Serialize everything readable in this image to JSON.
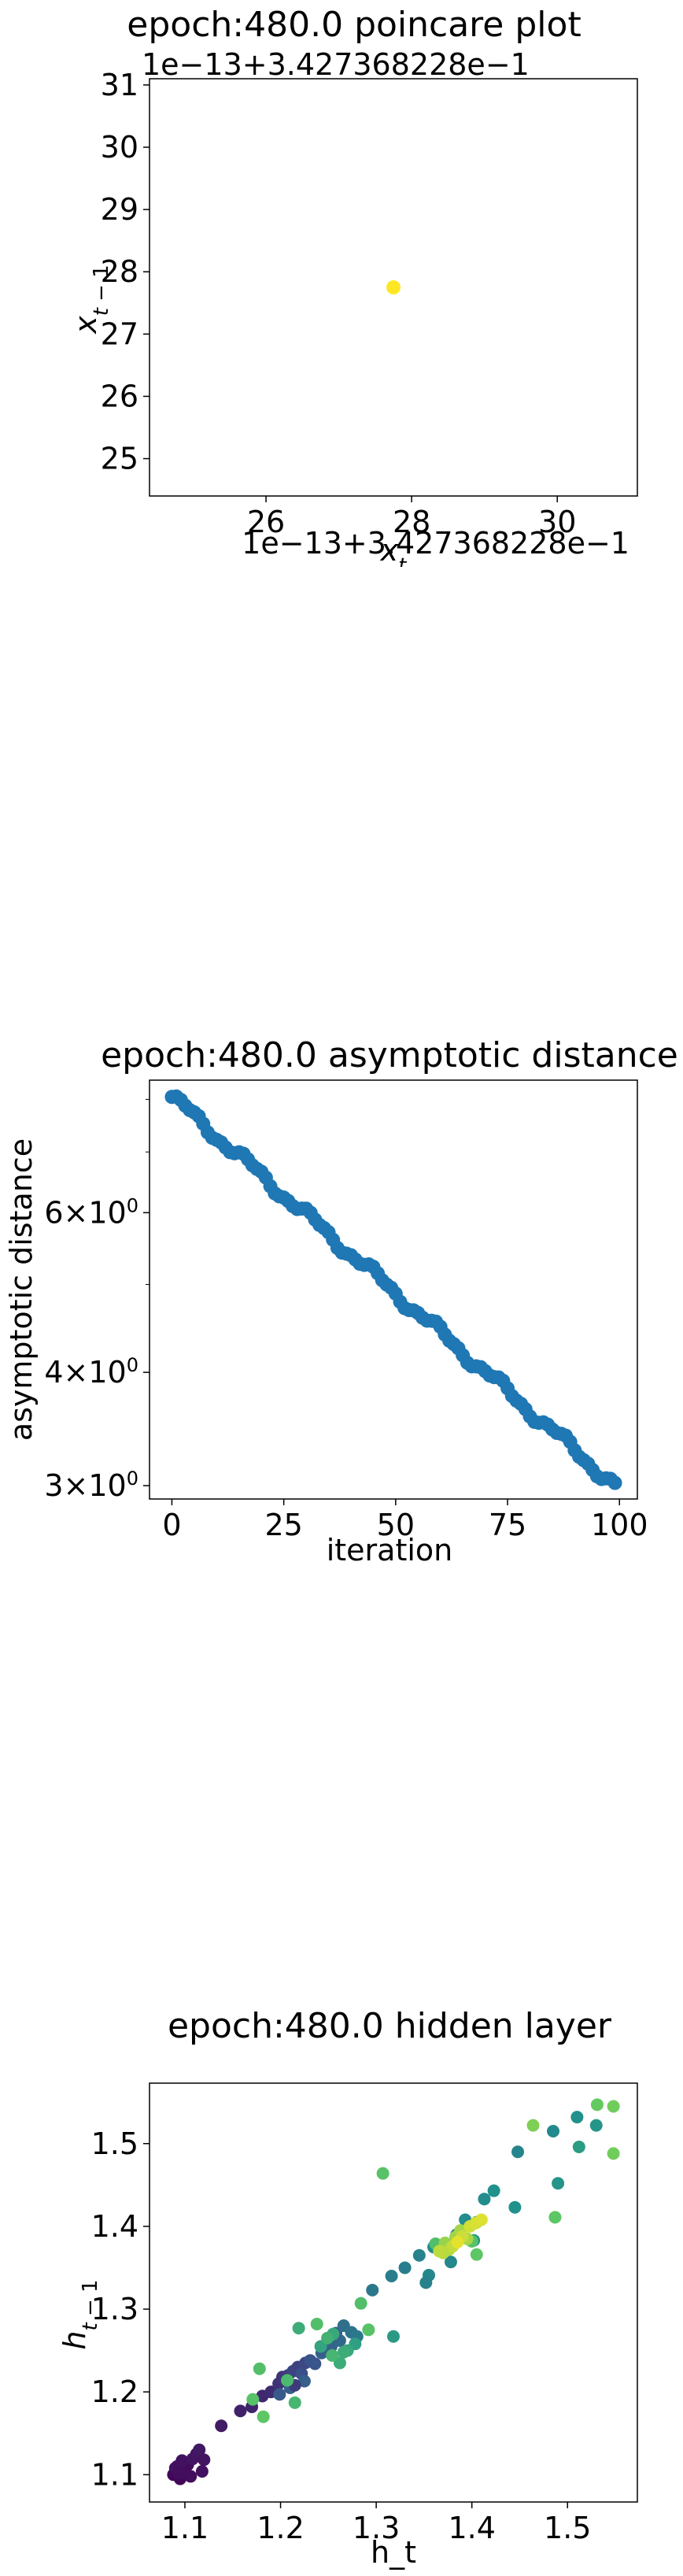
{
  "chart_data": [
    {
      "type": "scatter",
      "title": "epoch:480.0 poincare plot",
      "xlabel": "x_t",
      "ylabel": "x_{t-1}",
      "x_offset_label": "1e−13+3.427368228e−1",
      "y_offset_label": "1e−13+3.427368228e−1",
      "xlim": [
        24.4,
        31.1
      ],
      "ylim": [
        24.4,
        31.1
      ],
      "x_ticks": [
        26,
        28,
        30
      ],
      "y_ticks": [
        25,
        26,
        27,
        28,
        29,
        30,
        31
      ],
      "tick_labels_x": [
        "26",
        "28",
        "30"
      ],
      "tick_labels_y": [
        "25",
        "26",
        "27",
        "28",
        "29",
        "30",
        "31"
      ],
      "points": [
        {
          "x": 27.75,
          "y": 27.75
        }
      ],
      "point_color": "#fde725"
    },
    {
      "type": "scatter",
      "title": "epoch:480.0 asymptotic distance",
      "xlabel": "iteration",
      "ylabel": "asymptotic distance",
      "yscale": "log",
      "xlim": [
        -5,
        104
      ],
      "ylim": [
        2.9,
        8.4
      ],
      "x_ticks": [
        0,
        25,
        50,
        75,
        100
      ],
      "tick_labels_x": [
        "0",
        "25",
        "50",
        "75",
        "100"
      ],
      "y_major_ticks": [
        3,
        4,
        6
      ],
      "tick_labels_y": [
        "3",
        "4",
        "6"
      ],
      "tick_label_suffix": "×10",
      "tick_label_exponent": "0",
      "y_minor_ticks": [
        5,
        7,
        8
      ],
      "start_value": 8.05,
      "end_value": 3.0,
      "n_points": 100,
      "point_color": "#1f77b4"
    },
    {
      "type": "scatter",
      "title": "epoch:480.0 hidden layer",
      "xlabel": "h_t",
      "ylabel": "h_{t-1}",
      "xlim": [
        1.063,
        1.573
      ],
      "ylim": [
        1.067,
        1.573
      ],
      "x_ticks": [
        1.1,
        1.2,
        1.3,
        1.4,
        1.5
      ],
      "tick_labels_x": [
        "1.1",
        "1.2",
        "1.3",
        "1.4",
        "1.5"
      ],
      "y_ticks": [
        1.1,
        1.2,
        1.3,
        1.4,
        1.5
      ],
      "tick_labels_y": [
        "1.1",
        "1.2",
        "1.3",
        "1.4",
        "1.5"
      ],
      "colormap": "viridis",
      "points": [
        {
          "x": 1.088,
          "y": 1.1,
          "c": 0.02
        },
        {
          "x": 1.092,
          "y": 1.11,
          "c": 0.03
        },
        {
          "x": 1.095,
          "y": 1.095,
          "c": 0.02
        },
        {
          "x": 1.1,
          "y": 1.105,
          "c": 0.04
        },
        {
          "x": 1.103,
          "y": 1.112,
          "c": 0.03
        },
        {
          "x": 1.09,
          "y": 1.108,
          "c": 0.05
        },
        {
          "x": 1.097,
          "y": 1.117,
          "c": 0.05
        },
        {
          "x": 1.108,
          "y": 1.119,
          "c": 0.06
        },
        {
          "x": 1.112,
          "y": 1.125,
          "c": 0.06
        },
        {
          "x": 1.118,
          "y": 1.104,
          "c": 0.05
        },
        {
          "x": 1.115,
          "y": 1.13,
          "c": 0.07
        },
        {
          "x": 1.12,
          "y": 1.118,
          "c": 0.06
        },
        {
          "x": 1.094,
          "y": 1.102,
          "c": 0.04
        },
        {
          "x": 1.106,
          "y": 1.098,
          "c": 0.04
        },
        {
          "x": 1.138,
          "y": 1.159,
          "c": 0.08
        },
        {
          "x": 1.158,
          "y": 1.177,
          "c": 0.1
        },
        {
          "x": 1.17,
          "y": 1.182,
          "c": 0.11
        },
        {
          "x": 1.181,
          "y": 1.195,
          "c": 0.12
        },
        {
          "x": 1.19,
          "y": 1.2,
          "c": 0.13
        },
        {
          "x": 1.198,
          "y": 1.21,
          "c": 0.15
        },
        {
          "x": 1.202,
          "y": 1.218,
          "c": 0.16
        },
        {
          "x": 1.208,
          "y": 1.22,
          "c": 0.18
        },
        {
          "x": 1.213,
          "y": 1.225,
          "c": 0.2
        },
        {
          "x": 1.218,
          "y": 1.23,
          "c": 0.2
        },
        {
          "x": 1.222,
          "y": 1.222,
          "c": 0.24
        },
        {
          "x": 1.226,
          "y": 1.235,
          "c": 0.22
        },
        {
          "x": 1.231,
          "y": 1.238,
          "c": 0.25
        },
        {
          "x": 1.236,
          "y": 1.234,
          "c": 0.26
        },
        {
          "x": 1.199,
          "y": 1.197,
          "c": 0.28
        },
        {
          "x": 1.21,
          "y": 1.205,
          "c": 0.3
        },
        {
          "x": 1.225,
          "y": 1.213,
          "c": 0.3
        },
        {
          "x": 1.215,
          "y": 1.208,
          "c": 0.18
        },
        {
          "x": 1.243,
          "y": 1.247,
          "c": 0.3
        },
        {
          "x": 1.253,
          "y": 1.255,
          "c": 0.32
        },
        {
          "x": 1.262,
          "y": 1.262,
          "c": 0.34
        },
        {
          "x": 1.258,
          "y": 1.271,
          "c": 0.3
        },
        {
          "x": 1.266,
          "y": 1.28,
          "c": 0.36
        },
        {
          "x": 1.274,
          "y": 1.272,
          "c": 0.38
        },
        {
          "x": 1.28,
          "y": 1.267,
          "c": 0.4
        },
        {
          "x": 1.296,
          "y": 1.323,
          "c": 0.4
        },
        {
          "x": 1.316,
          "y": 1.34,
          "c": 0.42
        },
        {
          "x": 1.33,
          "y": 1.35,
          "c": 0.42
        },
        {
          "x": 1.345,
          "y": 1.365,
          "c": 0.44
        },
        {
          "x": 1.355,
          "y": 1.341,
          "c": 0.46
        },
        {
          "x": 1.36,
          "y": 1.375,
          "c": 0.48
        },
        {
          "x": 1.378,
          "y": 1.357,
          "c": 0.46
        },
        {
          "x": 1.393,
          "y": 1.408,
          "c": 0.48
        },
        {
          "x": 1.405,
          "y": 1.405,
          "c": 0.5
        },
        {
          "x": 1.413,
          "y": 1.433,
          "c": 0.48
        },
        {
          "x": 1.423,
          "y": 1.443,
          "c": 0.5
        },
        {
          "x": 1.445,
          "y": 1.423,
          "c": 0.5
        },
        {
          "x": 1.448,
          "y": 1.49,
          "c": 0.45
        },
        {
          "x": 1.485,
          "y": 1.515,
          "c": 0.47
        },
        {
          "x": 1.49,
          "y": 1.452,
          "c": 0.52
        },
        {
          "x": 1.51,
          "y": 1.532,
          "c": 0.5
        },
        {
          "x": 1.53,
          "y": 1.522,
          "c": 0.52
        },
        {
          "x": 1.512,
          "y": 1.496,
          "c": 0.55
        },
        {
          "x": 1.384,
          "y": 1.39,
          "c": 0.46
        },
        {
          "x": 1.402,
          "y": 1.383,
          "c": 0.52
        },
        {
          "x": 1.352,
          "y": 1.332,
          "c": 0.44
        },
        {
          "x": 1.318,
          "y": 1.267,
          "c": 0.54
        },
        {
          "x": 1.278,
          "y": 1.258,
          "c": 0.56
        },
        {
          "x": 1.242,
          "y": 1.255,
          "c": 0.58
        },
        {
          "x": 1.255,
          "y": 1.27,
          "c": 0.6
        },
        {
          "x": 1.27,
          "y": 1.25,
          "c": 0.6
        },
        {
          "x": 1.262,
          "y": 1.235,
          "c": 0.62
        },
        {
          "x": 1.266,
          "y": 1.248,
          "c": 0.62
        },
        {
          "x": 1.219,
          "y": 1.277,
          "c": 0.62
        },
        {
          "x": 1.249,
          "y": 1.265,
          "c": 0.64
        },
        {
          "x": 1.254,
          "y": 1.244,
          "c": 0.66
        },
        {
          "x": 1.215,
          "y": 1.187,
          "c": 0.66
        },
        {
          "x": 1.207,
          "y": 1.214,
          "c": 0.68
        },
        {
          "x": 1.178,
          "y": 1.228,
          "c": 0.7
        },
        {
          "x": 1.171,
          "y": 1.191,
          "c": 0.72
        },
        {
          "x": 1.182,
          "y": 1.17,
          "c": 0.74
        },
        {
          "x": 1.238,
          "y": 1.282,
          "c": 0.7
        },
        {
          "x": 1.284,
          "y": 1.307,
          "c": 0.7
        },
        {
          "x": 1.292,
          "y": 1.275,
          "c": 0.72
        },
        {
          "x": 1.307,
          "y": 1.464,
          "c": 0.72
        },
        {
          "x": 1.362,
          "y": 1.379,
          "c": 0.7
        },
        {
          "x": 1.4,
          "y": 1.382,
          "c": 0.72
        },
        {
          "x": 1.405,
          "y": 1.366,
          "c": 0.74
        },
        {
          "x": 1.487,
          "y": 1.411,
          "c": 0.74
        },
        {
          "x": 1.531,
          "y": 1.547,
          "c": 0.76
        },
        {
          "x": 1.548,
          "y": 1.488,
          "c": 0.78
        },
        {
          "x": 1.548,
          "y": 1.545,
          "c": 0.78
        },
        {
          "x": 1.464,
          "y": 1.522,
          "c": 0.8
        },
        {
          "x": 1.372,
          "y": 1.38,
          "c": 0.84
        },
        {
          "x": 1.383,
          "y": 1.387,
          "c": 0.85
        },
        {
          "x": 1.388,
          "y": 1.395,
          "c": 0.86
        },
        {
          "x": 1.395,
          "y": 1.385,
          "c": 0.87
        },
        {
          "x": 1.376,
          "y": 1.372,
          "c": 0.88
        },
        {
          "x": 1.37,
          "y": 1.368,
          "c": 0.89
        },
        {
          "x": 1.366,
          "y": 1.37,
          "c": 0.9
        },
        {
          "x": 1.38,
          "y": 1.376,
          "c": 0.91
        },
        {
          "x": 1.39,
          "y": 1.388,
          "c": 0.92
        },
        {
          "x": 1.398,
          "y": 1.4,
          "c": 0.93
        },
        {
          "x": 1.404,
          "y": 1.404,
          "c": 0.94
        },
        {
          "x": 1.41,
          "y": 1.408,
          "c": 0.95
        },
        {
          "x": 1.385,
          "y": 1.381,
          "c": 0.96
        }
      ]
    }
  ]
}
